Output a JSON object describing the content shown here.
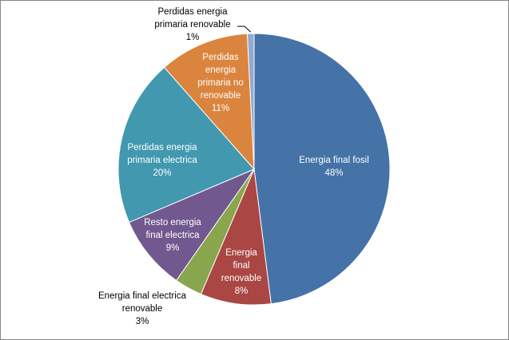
{
  "chart_data": {
    "type": "pie",
    "title": "",
    "start_angle_deg": 0,
    "direction": "clockwise",
    "slices": [
      {
        "label_lines": [
          "Energia final fosil"
        ],
        "percent_label": "48%",
        "value": 48.0,
        "color": "#4572A7",
        "label_position": "inside"
      },
      {
        "label_lines": [
          "Energia",
          "final",
          "renovable"
        ],
        "percent_label": "8%",
        "value": 8.4,
        "color": "#AA4643",
        "label_position": "inside"
      },
      {
        "label_lines": [
          "Energia final electrica",
          "renovable"
        ],
        "percent_label": "3%",
        "value": 3.3,
        "color": "#89A54E",
        "label_position": "outside"
      },
      {
        "label_lines": [
          "Resto energia",
          "final electrica"
        ],
        "percent_label": "9%",
        "value": 8.9,
        "color": "#71588F",
        "label_position": "inside"
      },
      {
        "label_lines": [
          "Perdidas energia",
          "primaria electrica"
        ],
        "percent_label": "20%",
        "value": 19.9,
        "color": "#4198AF",
        "label_position": "inside"
      },
      {
        "label_lines": [
          "Perdidas",
          "energia",
          "primaria no",
          "renovable"
        ],
        "percent_label": "11%",
        "value": 10.7,
        "color": "#DB843D",
        "label_position": "inside"
      },
      {
        "label_lines": [
          "Perdidas energia",
          "primaria renovable"
        ],
        "percent_label": "1%",
        "value": 0.8,
        "color": "#93A9CF",
        "label_position": "outside"
      }
    ]
  }
}
